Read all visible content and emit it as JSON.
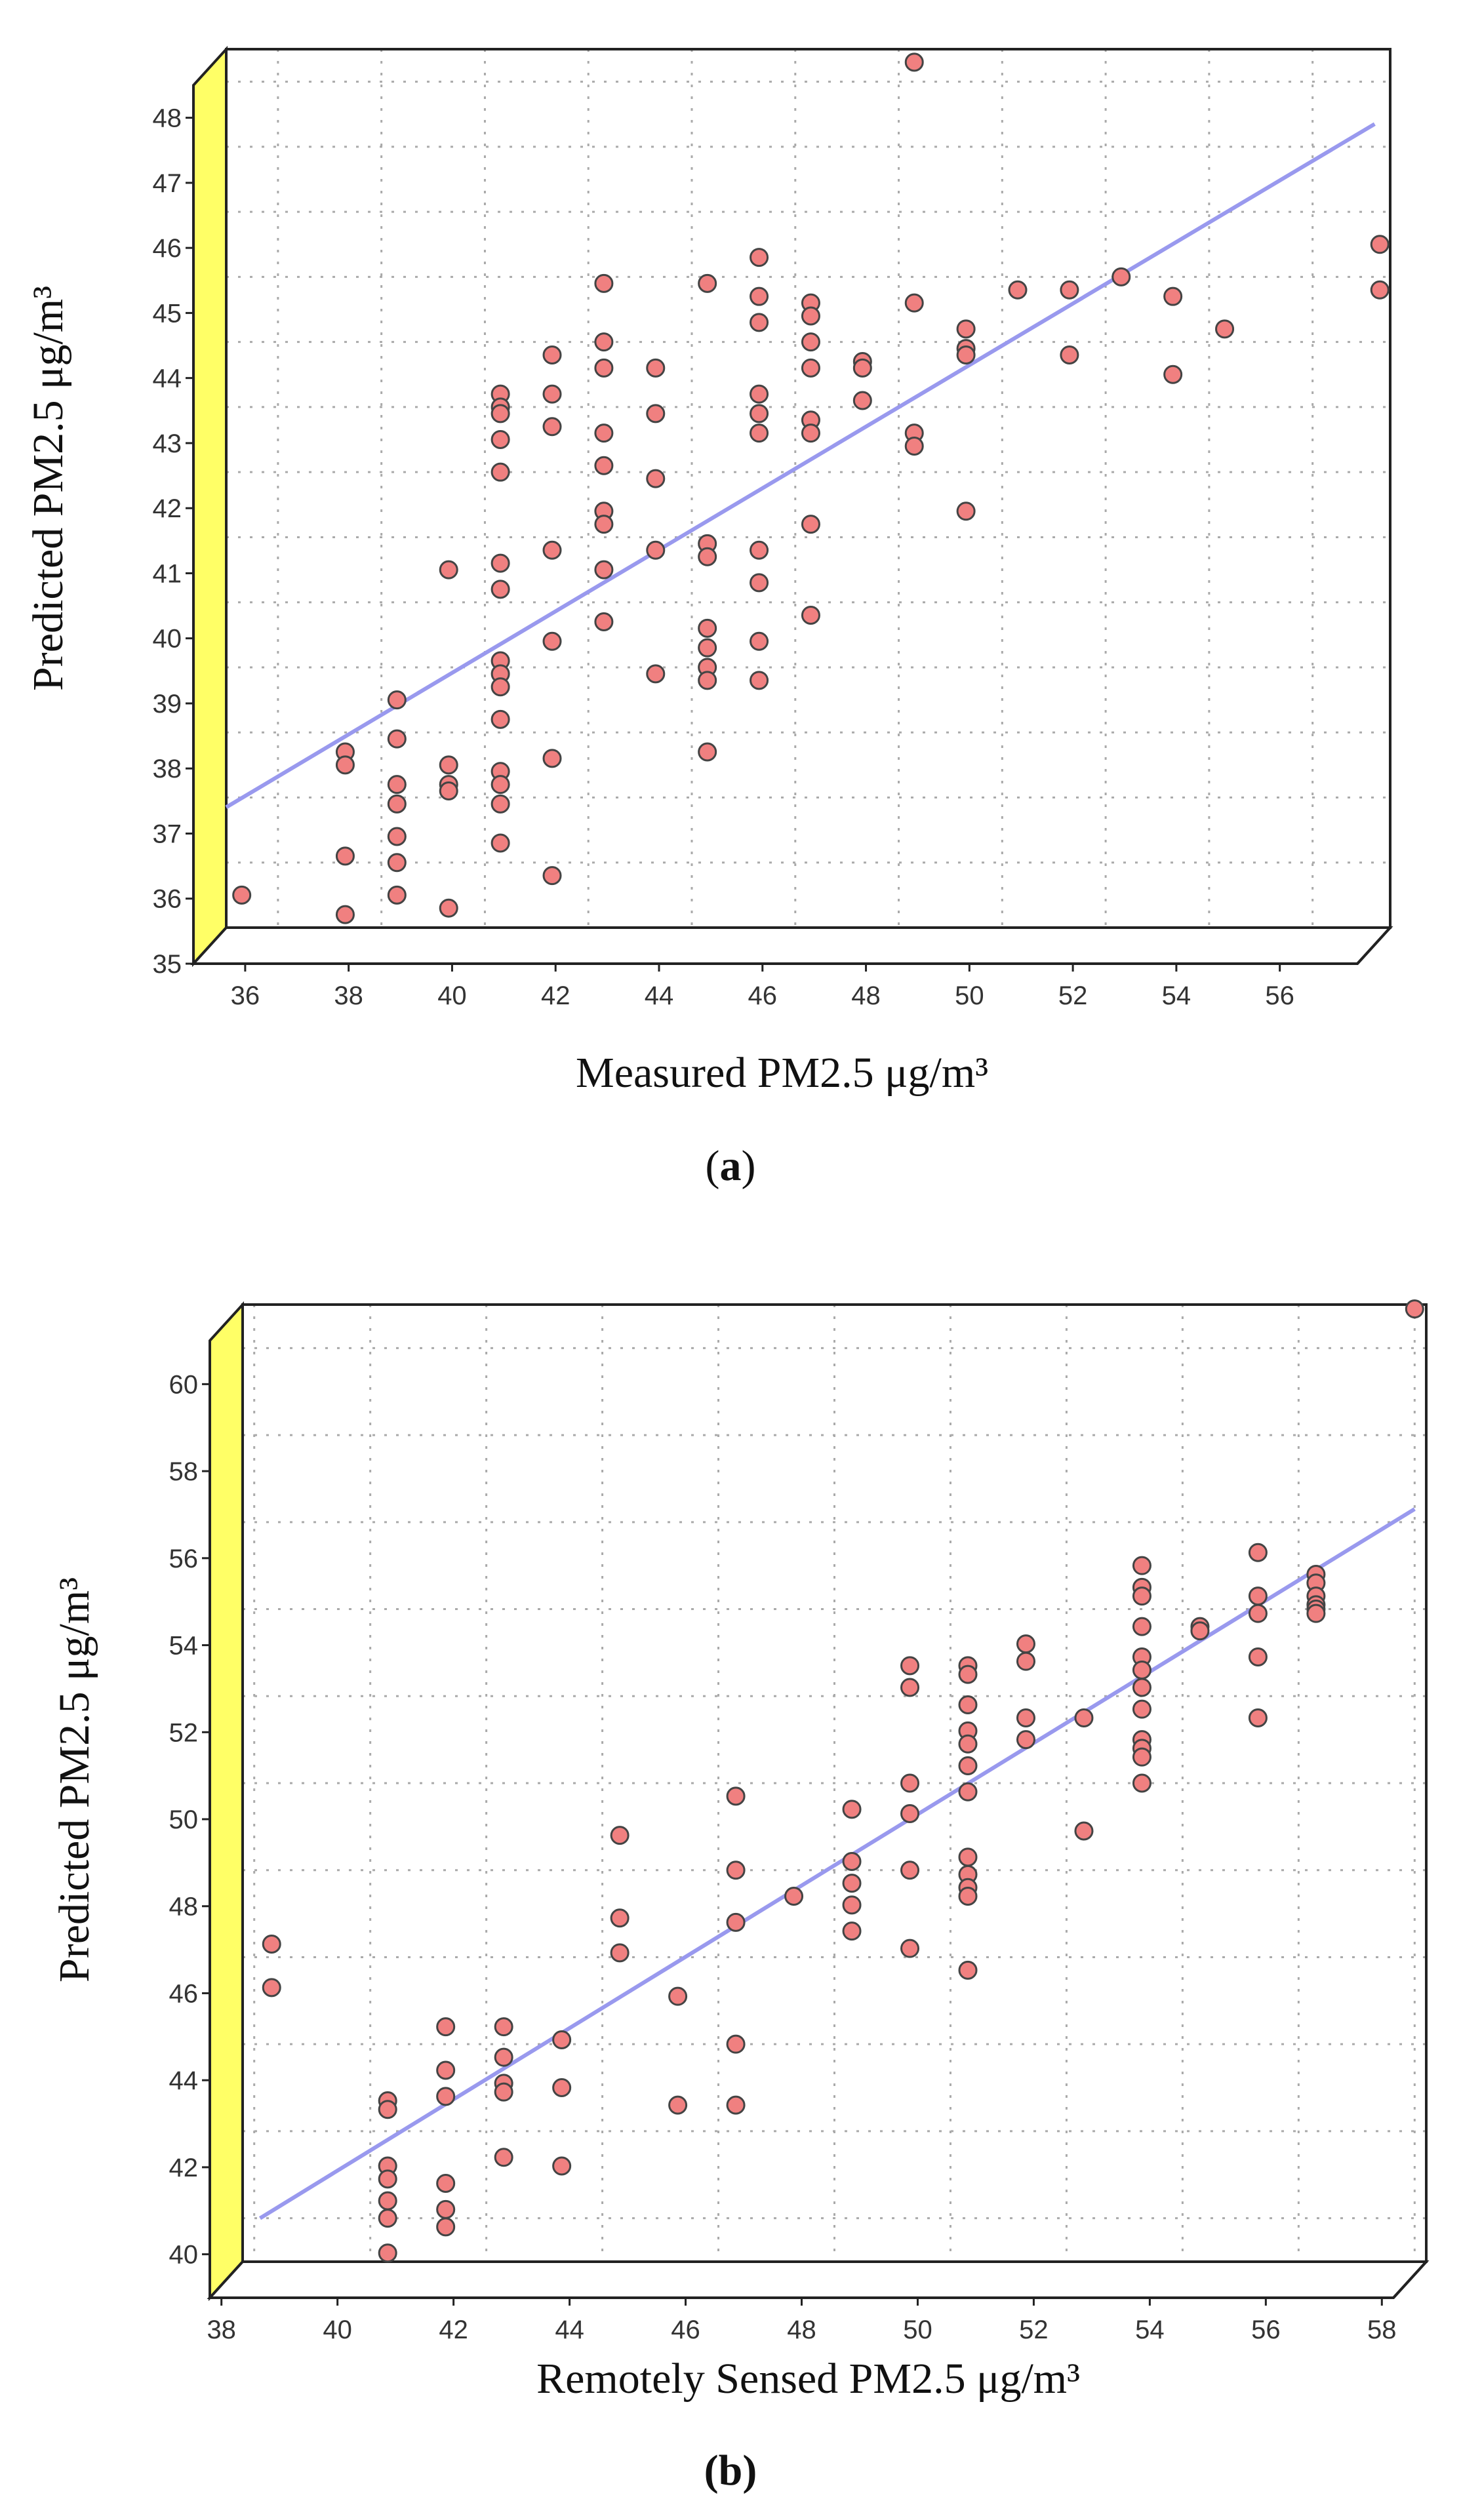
{
  "colors": {
    "wall": "#ffff66",
    "point_fill": "#f08080",
    "point_stroke": "#444444",
    "fit_line": "#9999ee",
    "grid": "#aaaaaa",
    "frame": "#222222"
  },
  "chart_data": [
    {
      "panel": "(a)",
      "panel_text": "a",
      "type": "scatter",
      "xlabel": "Measured PM2.5 μg/m³",
      "ylabel": "Predicted PM2.5 μg/m³",
      "xlim": [
        35,
        57.5
      ],
      "ylim": [
        35,
        48.5
      ],
      "xticks": [
        36,
        38,
        40,
        42,
        44,
        46,
        48,
        50,
        52,
        54,
        56
      ],
      "yticks": [
        35,
        36,
        37,
        38,
        39,
        40,
        41,
        42,
        43,
        44,
        45,
        46,
        47,
        48
      ],
      "fit_line": [
        [
          35,
          36.85
        ],
        [
          57.2,
          47.35
        ]
      ],
      "points": [
        [
          35.3,
          35.5
        ],
        [
          37.3,
          37.7
        ],
        [
          37.3,
          37.5
        ],
        [
          37.3,
          36.1
        ],
        [
          37.3,
          35.2
        ],
        [
          38.3,
          38.5
        ],
        [
          38.3,
          37.9
        ],
        [
          38.3,
          37.2
        ],
        [
          38.3,
          36.9
        ],
        [
          38.3,
          36.4
        ],
        [
          38.3,
          36.0
        ],
        [
          38.3,
          35.5
        ],
        [
          39.3,
          40.5
        ],
        [
          39.3,
          37.5
        ],
        [
          39.3,
          37.2
        ],
        [
          39.3,
          37.1
        ],
        [
          39.3,
          35.3
        ],
        [
          40.3,
          43.2
        ],
        [
          40.3,
          43.0
        ],
        [
          40.3,
          42.9
        ],
        [
          40.3,
          42.5
        ],
        [
          40.3,
          42.0
        ],
        [
          40.3,
          40.6
        ],
        [
          40.3,
          40.2
        ],
        [
          40.3,
          39.1
        ],
        [
          40.3,
          38.9
        ],
        [
          40.3,
          38.7
        ],
        [
          40.3,
          38.2
        ],
        [
          40.3,
          37.4
        ],
        [
          40.3,
          37.2
        ],
        [
          40.3,
          36.9
        ],
        [
          40.3,
          36.3
        ],
        [
          41.3,
          43.8
        ],
        [
          41.3,
          43.2
        ],
        [
          41.3,
          42.7
        ],
        [
          41.3,
          40.8
        ],
        [
          41.3,
          39.4
        ],
        [
          41.3,
          37.6
        ],
        [
          41.3,
          35.8
        ],
        [
          42.3,
          44.9
        ],
        [
          42.3,
          44.0
        ],
        [
          42.3,
          43.6
        ],
        [
          42.3,
          42.6
        ],
        [
          42.3,
          42.1
        ],
        [
          42.3,
          41.4
        ],
        [
          42.3,
          41.2
        ],
        [
          42.3,
          40.5
        ],
        [
          42.3,
          39.7
        ],
        [
          43.3,
          43.6
        ],
        [
          43.3,
          42.9
        ],
        [
          43.3,
          41.9
        ],
        [
          43.3,
          40.8
        ],
        [
          43.3,
          38.9
        ],
        [
          44.3,
          44.9
        ],
        [
          44.3,
          40.9
        ],
        [
          44.3,
          40.7
        ],
        [
          44.3,
          39.6
        ],
        [
          44.3,
          39.3
        ],
        [
          44.3,
          39.0
        ],
        [
          44.3,
          38.8
        ],
        [
          44.3,
          37.7
        ],
        [
          45.3,
          45.3
        ],
        [
          45.3,
          44.7
        ],
        [
          45.3,
          44.3
        ],
        [
          45.3,
          43.2
        ],
        [
          45.3,
          42.9
        ],
        [
          45.3,
          42.6
        ],
        [
          45.3,
          40.8
        ],
        [
          45.3,
          40.3
        ],
        [
          45.3,
          39.4
        ],
        [
          45.3,
          38.8
        ],
        [
          46.3,
          44.6
        ],
        [
          46.3,
          44.4
        ],
        [
          46.3,
          44.0
        ],
        [
          46.3,
          43.6
        ],
        [
          46.3,
          42.8
        ],
        [
          46.3,
          42.6
        ],
        [
          46.3,
          41.2
        ],
        [
          46.3,
          39.8
        ],
        [
          47.3,
          43.7
        ],
        [
          47.3,
          43.6
        ],
        [
          47.3,
          43.1
        ],
        [
          48.3,
          48.3
        ],
        [
          48.3,
          44.6
        ],
        [
          48.3,
          42.6
        ],
        [
          48.3,
          42.4
        ],
        [
          49.3,
          44.2
        ],
        [
          49.3,
          43.9
        ],
        [
          49.3,
          43.8
        ],
        [
          49.3,
          41.4
        ],
        [
          50.3,
          44.8
        ],
        [
          51.3,
          44.8
        ],
        [
          51.3,
          43.8
        ],
        [
          52.3,
          45.0
        ],
        [
          53.3,
          44.7
        ],
        [
          53.3,
          43.5
        ],
        [
          54.3,
          44.2
        ],
        [
          57.3,
          45.5
        ],
        [
          57.3,
          44.8
        ]
      ]
    },
    {
      "panel": "(b)",
      "panel_text": "(b)",
      "type": "scatter",
      "xlabel": "Remotely Sensed PM2.5 μg/m³",
      "ylabel": "Predicted PM2.5 μg/m³",
      "xlim": [
        37.8,
        58.2
      ],
      "ylim": [
        39,
        61
      ],
      "xticks": [
        38,
        40,
        42,
        44,
        46,
        48,
        50,
        52,
        54,
        56,
        58
      ],
      "yticks": [
        40,
        42,
        44,
        46,
        48,
        50,
        52,
        54,
        56,
        58,
        60
      ],
      "fit_line": [
        [
          38.1,
          40.0
        ],
        [
          58.0,
          56.3
        ]
      ],
      "points": [
        [
          38.3,
          46.3
        ],
        [
          38.3,
          45.3
        ],
        [
          40.3,
          42.7
        ],
        [
          40.3,
          42.5
        ],
        [
          40.3,
          41.2
        ],
        [
          40.3,
          40.9
        ],
        [
          40.3,
          40.4
        ],
        [
          40.3,
          40.0
        ],
        [
          40.3,
          39.2
        ],
        [
          41.3,
          44.4
        ],
        [
          41.3,
          43.4
        ],
        [
          41.3,
          42.8
        ],
        [
          41.3,
          40.8
        ],
        [
          41.3,
          40.2
        ],
        [
          41.3,
          39.8
        ],
        [
          42.3,
          44.4
        ],
        [
          42.3,
          43.7
        ],
        [
          42.3,
          43.1
        ],
        [
          42.3,
          42.9
        ],
        [
          42.3,
          41.4
        ],
        [
          43.3,
          44.1
        ],
        [
          43.3,
          43.0
        ],
        [
          43.3,
          41.2
        ],
        [
          44.3,
          48.8
        ],
        [
          44.3,
          46.9
        ],
        [
          44.3,
          46.1
        ],
        [
          45.3,
          45.1
        ],
        [
          45.3,
          42.6
        ],
        [
          46.3,
          49.7
        ],
        [
          46.3,
          48.0
        ],
        [
          46.3,
          46.8
        ],
        [
          46.3,
          44.0
        ],
        [
          46.3,
          42.6
        ],
        [
          47.3,
          47.4
        ],
        [
          48.3,
          49.4
        ],
        [
          48.3,
          48.2
        ],
        [
          48.3,
          47.7
        ],
        [
          48.3,
          47.2
        ],
        [
          48.3,
          46.6
        ],
        [
          49.3,
          52.7
        ],
        [
          49.3,
          52.2
        ],
        [
          49.3,
          50.0
        ],
        [
          49.3,
          49.3
        ],
        [
          49.3,
          48.0
        ],
        [
          49.3,
          46.2
        ],
        [
          50.3,
          52.7
        ],
        [
          50.3,
          52.5
        ],
        [
          50.3,
          51.8
        ],
        [
          50.3,
          51.2
        ],
        [
          50.3,
          50.9
        ],
        [
          50.3,
          50.4
        ],
        [
          50.3,
          49.8
        ],
        [
          50.3,
          48.3
        ],
        [
          50.3,
          47.9
        ],
        [
          50.3,
          47.6
        ],
        [
          50.3,
          47.4
        ],
        [
          50.3,
          45.7
        ],
        [
          51.3,
          53.2
        ],
        [
          51.3,
          52.8
        ],
        [
          51.3,
          51.5
        ],
        [
          51.3,
          51.0
        ],
        [
          52.3,
          51.5
        ],
        [
          52.3,
          48.9
        ],
        [
          53.3,
          55.0
        ],
        [
          53.3,
          54.5
        ],
        [
          53.3,
          54.3
        ],
        [
          53.3,
          53.6
        ],
        [
          53.3,
          52.9
        ],
        [
          53.3,
          52.6
        ],
        [
          53.3,
          52.2
        ],
        [
          53.3,
          51.7
        ],
        [
          53.3,
          51.0
        ],
        [
          53.3,
          50.8
        ],
        [
          53.3,
          50.6
        ],
        [
          53.3,
          50.0
        ],
        [
          54.3,
          53.6
        ],
        [
          54.3,
          53.5
        ],
        [
          55.3,
          55.3
        ],
        [
          55.3,
          54.3
        ],
        [
          55.3,
          53.9
        ],
        [
          55.3,
          52.9
        ],
        [
          55.3,
          51.5
        ],
        [
          56.3,
          54.8
        ],
        [
          56.3,
          54.6
        ],
        [
          56.3,
          54.3
        ],
        [
          56.3,
          54.1
        ],
        [
          56.3,
          54.0
        ],
        [
          56.3,
          53.9
        ],
        [
          58.0,
          60.9
        ]
      ]
    }
  ]
}
